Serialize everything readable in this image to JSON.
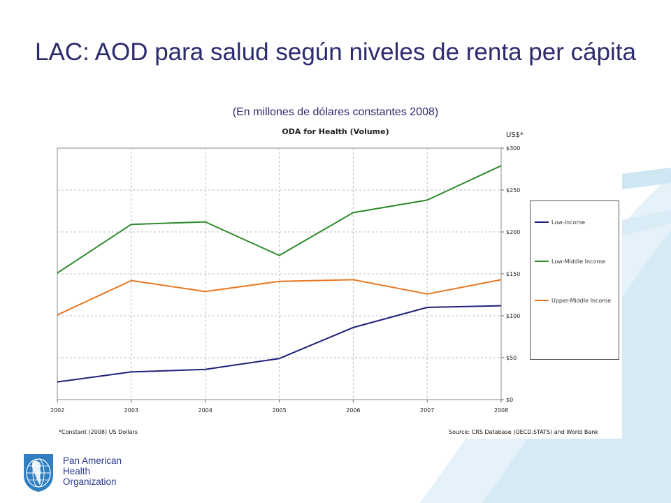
{
  "slide": {
    "title": "LAC: AOD para salud según niveles de renta per cápita",
    "subtitle": "(En millones de dólares constantes 2008)"
  },
  "organization": {
    "lines": [
      "Pan American",
      "Health",
      "Organization"
    ]
  },
  "chart_data": {
    "type": "line",
    "title": "ODA for Health (Volume)",
    "unit_label": "US$*",
    "x": [
      "2002",
      "2003",
      "2004",
      "2005",
      "2006",
      "2007",
      "2008"
    ],
    "y_ticks": [
      "$0",
      "$50",
      "$100",
      "$150",
      "$200",
      "$250",
      "$300"
    ],
    "ylim": [
      0,
      300
    ],
    "y_axis_side": "right",
    "grid": true,
    "legend_position": "right",
    "footnote": "*Constant (2008) US Dollars",
    "source": "Source: CRS Database (OECD.STATS) and World Bank",
    "series": [
      {
        "name": "Low-Income",
        "color": "#1f1f7a",
        "values": [
          21,
          33,
          36,
          49,
          86,
          110,
          112
        ]
      },
      {
        "name": "Low-Middle Income",
        "color": "#2e8b2e",
        "values": [
          151,
          209,
          212,
          172,
          223,
          238,
          279
        ]
      },
      {
        "name": "Upper-Middle Income",
        "color": "#e87722",
        "values": [
          101,
          142,
          129,
          141,
          143,
          126,
          143
        ]
      }
    ]
  }
}
